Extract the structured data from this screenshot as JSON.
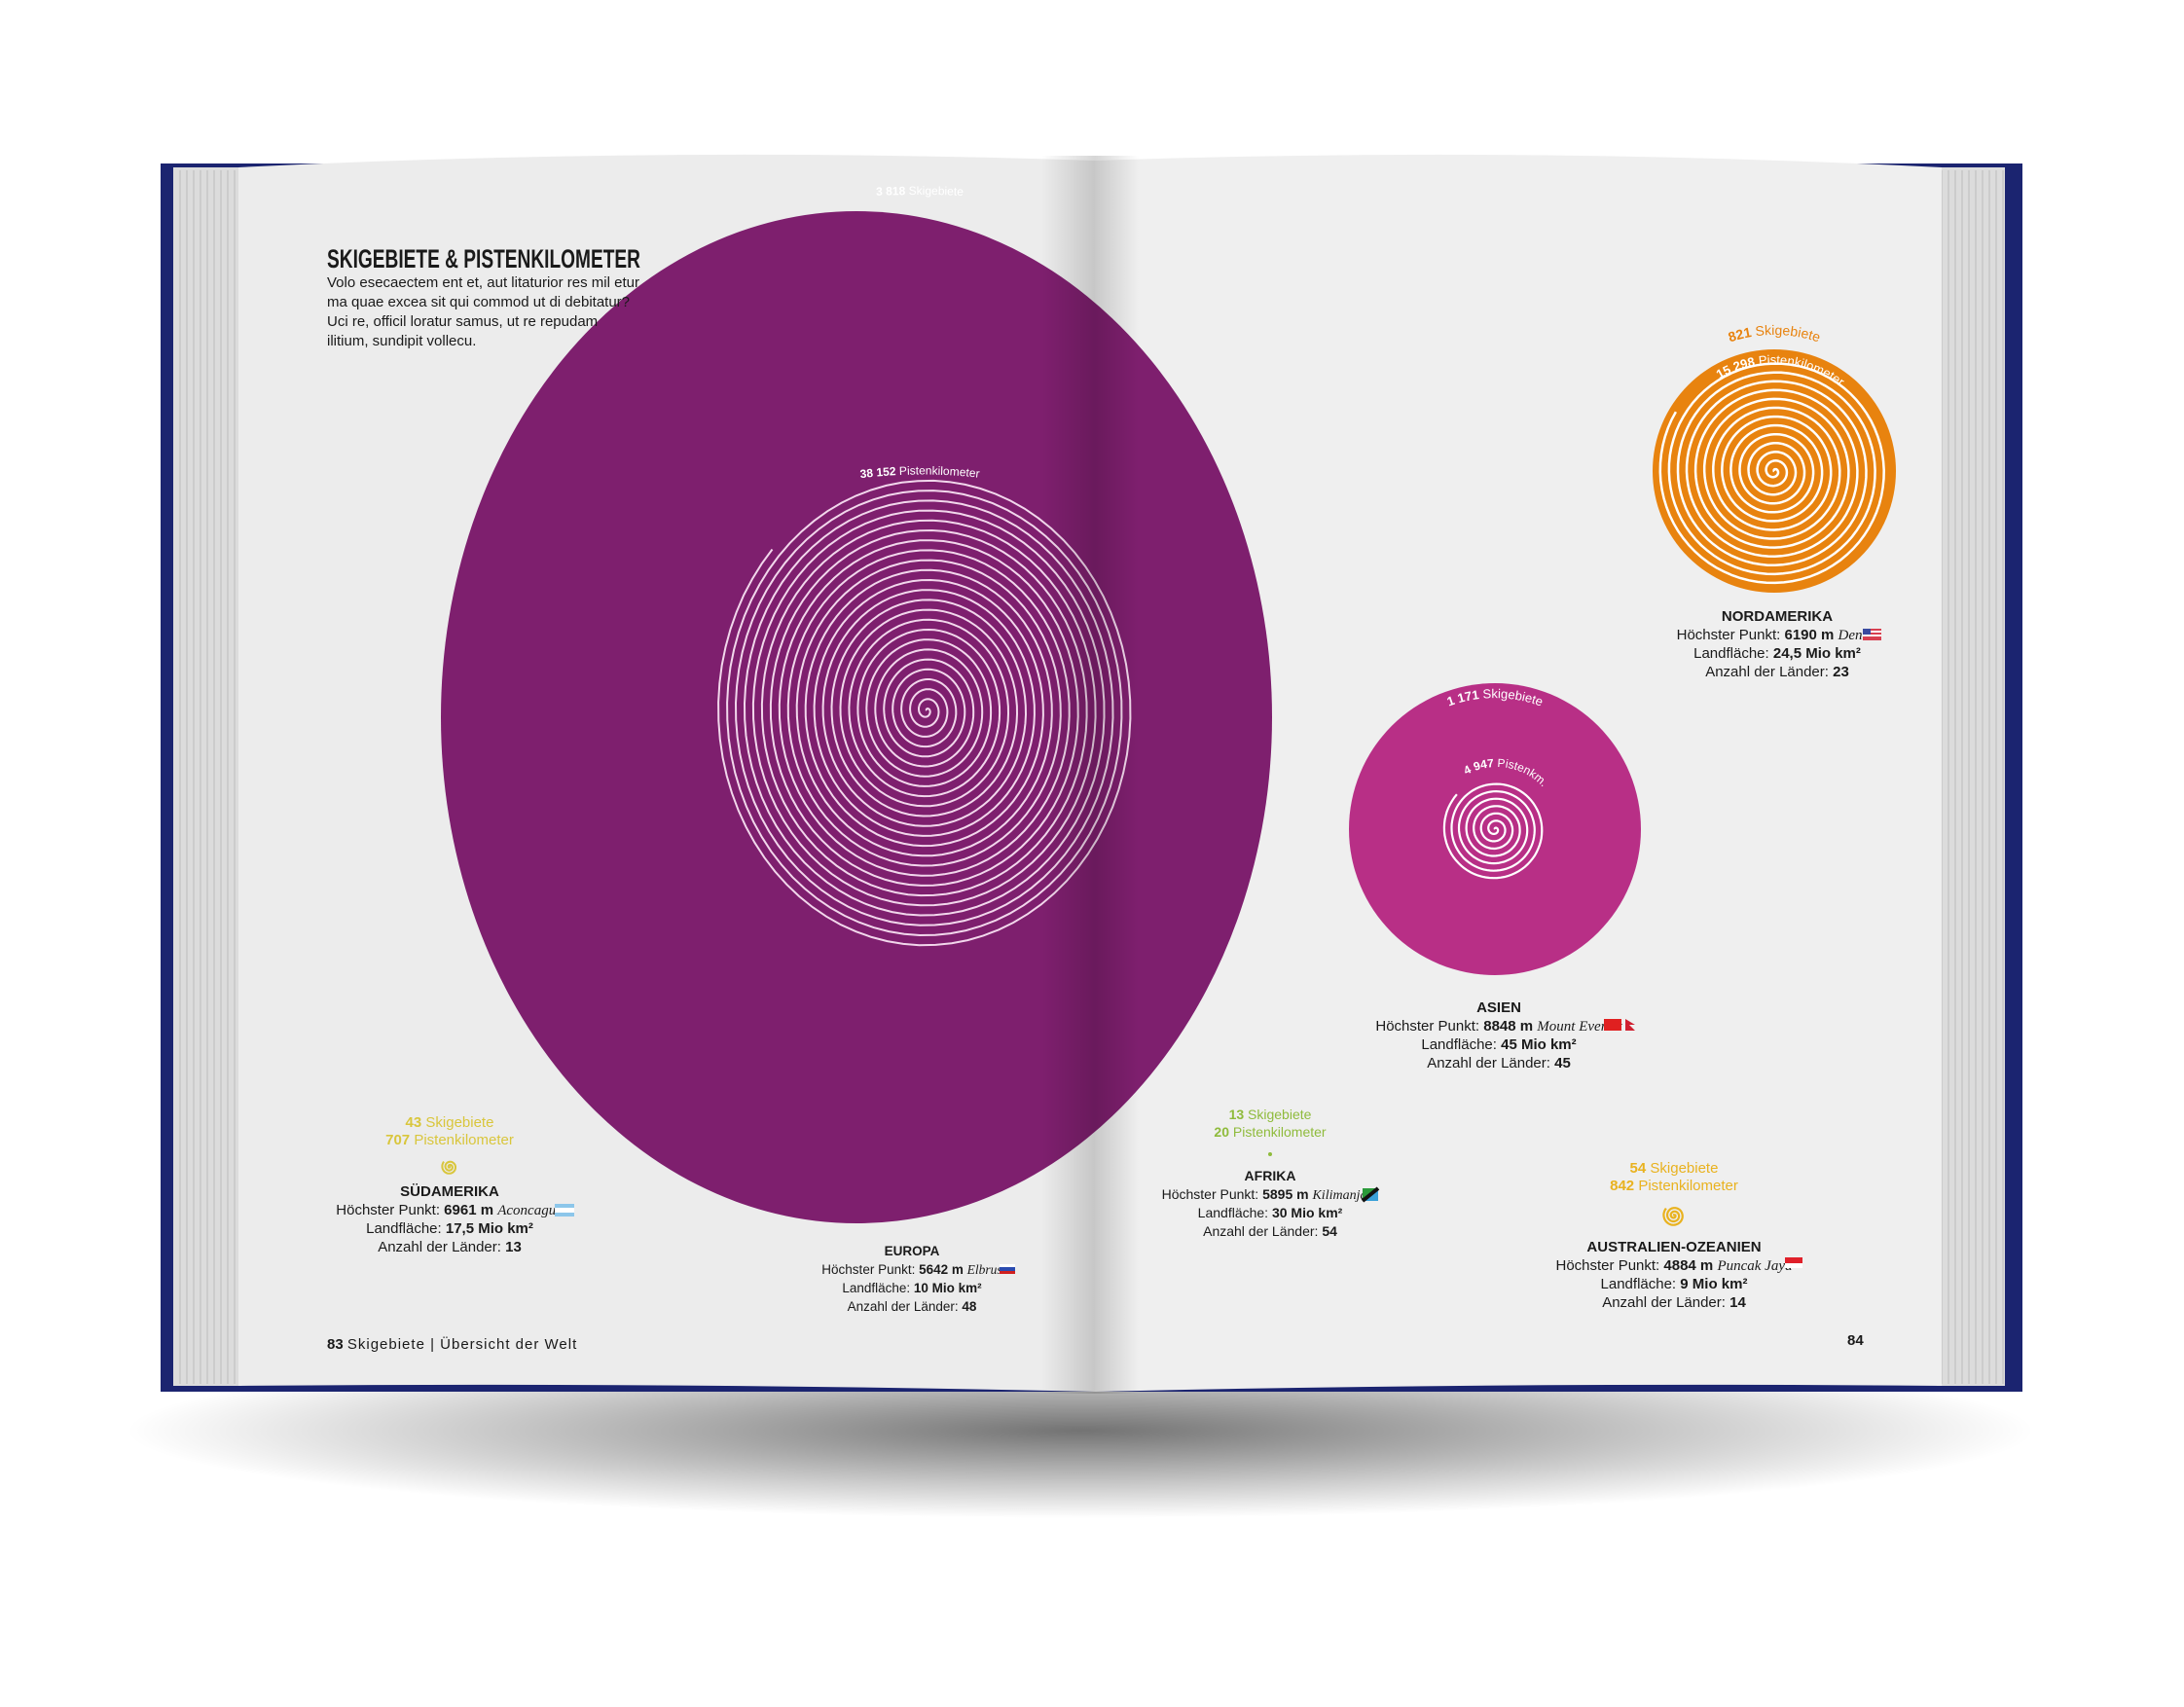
{
  "page": {
    "title": "SKIGEBIETE & PISTENKILOMETER",
    "intro": [
      "Volo esecaectem ent et, aut litaturior res mil etur",
      "ma quae excea sit qui commod ut di debitatur?",
      "Uci re, officil loratur samus, ut re repudam",
      "ilitium, sundipit vollecu."
    ],
    "footer_left_number": "83",
    "footer_left_text": "Skigebiete | Übersicht der Welt",
    "footer_right_number": "84"
  },
  "labels": {
    "skigebiete": "Skigebiete",
    "pistenkilometer": "Pistenkilometer",
    "pistenkm_short": "Pistenkm.",
    "peak": "Höchster Punkt:",
    "area": "Landfläche:",
    "countries": "Anzahl der Länder:"
  },
  "chart_data": {
    "type": "scatter",
    "title": "SKIGEBIETE & PISTENKILOMETER",
    "encoding": "circle area = Skigebiete, spiral length = Pistenkilometer",
    "series": [
      {
        "name": "EUROPA",
        "skigebiete": 3818,
        "skigebiete_text": "3 818",
        "pistenkilometer": 38152,
        "pistenkilometer_text": "38 152",
        "peak_height": "5642 m",
        "peak_name": "Elbrus",
        "area": "10 Mio km²",
        "countries": "48",
        "color": "#7e1f6e"
      },
      {
        "name": "NORDAMERIKA",
        "skigebiete": 821,
        "skigebiete_text": "821",
        "pistenkilometer": 15298,
        "pistenkilometer_text": "15 298",
        "peak_height": "6190 m",
        "peak_name": "Denali",
        "area": "24,5 Mio km²",
        "countries": "23",
        "color": "#e8830f"
      },
      {
        "name": "ASIEN",
        "skigebiete": 1171,
        "skigebiete_text": "1 171",
        "pistenkilometer": 4947,
        "pistenkilometer_text": "4 947",
        "peak_height": "8848 m",
        "peak_name": "Mount Everest",
        "area": "45 Mio km²",
        "countries": "45",
        "color": "#b82f86"
      },
      {
        "name": "SÜDAMERIKA",
        "skigebiete": 43,
        "skigebiete_text": "43",
        "pistenkilometer": 707,
        "pistenkilometer_text": "707",
        "peak_height": "6961 m",
        "peak_name": "Aconcagua",
        "area": "17,5 Mio km²",
        "countries": "13",
        "color": "#d9c63c"
      },
      {
        "name": "AFRIKA",
        "skigebiete": 13,
        "skigebiete_text": "13",
        "pistenkilometer": 20,
        "pistenkilometer_text": "20",
        "peak_height": "5895 m",
        "peak_name": "Kilimanjaro",
        "area": "30 Mio km²",
        "countries": "54",
        "color": "#8fbb3c"
      },
      {
        "name": "AUSTRALIEN-OZEANIEN",
        "skigebiete": 54,
        "skigebiete_text": "54",
        "pistenkilometer": 842,
        "pistenkilometer_text": "842",
        "peak_height": "4884 m",
        "peak_name": "Puncak Jaya",
        "area": "9 Mio km²",
        "countries": "14",
        "color": "#e9b21f"
      }
    ]
  },
  "colors": {
    "cover": "#1b2470",
    "paper": "#ececec",
    "text": "#1a1a1a"
  }
}
